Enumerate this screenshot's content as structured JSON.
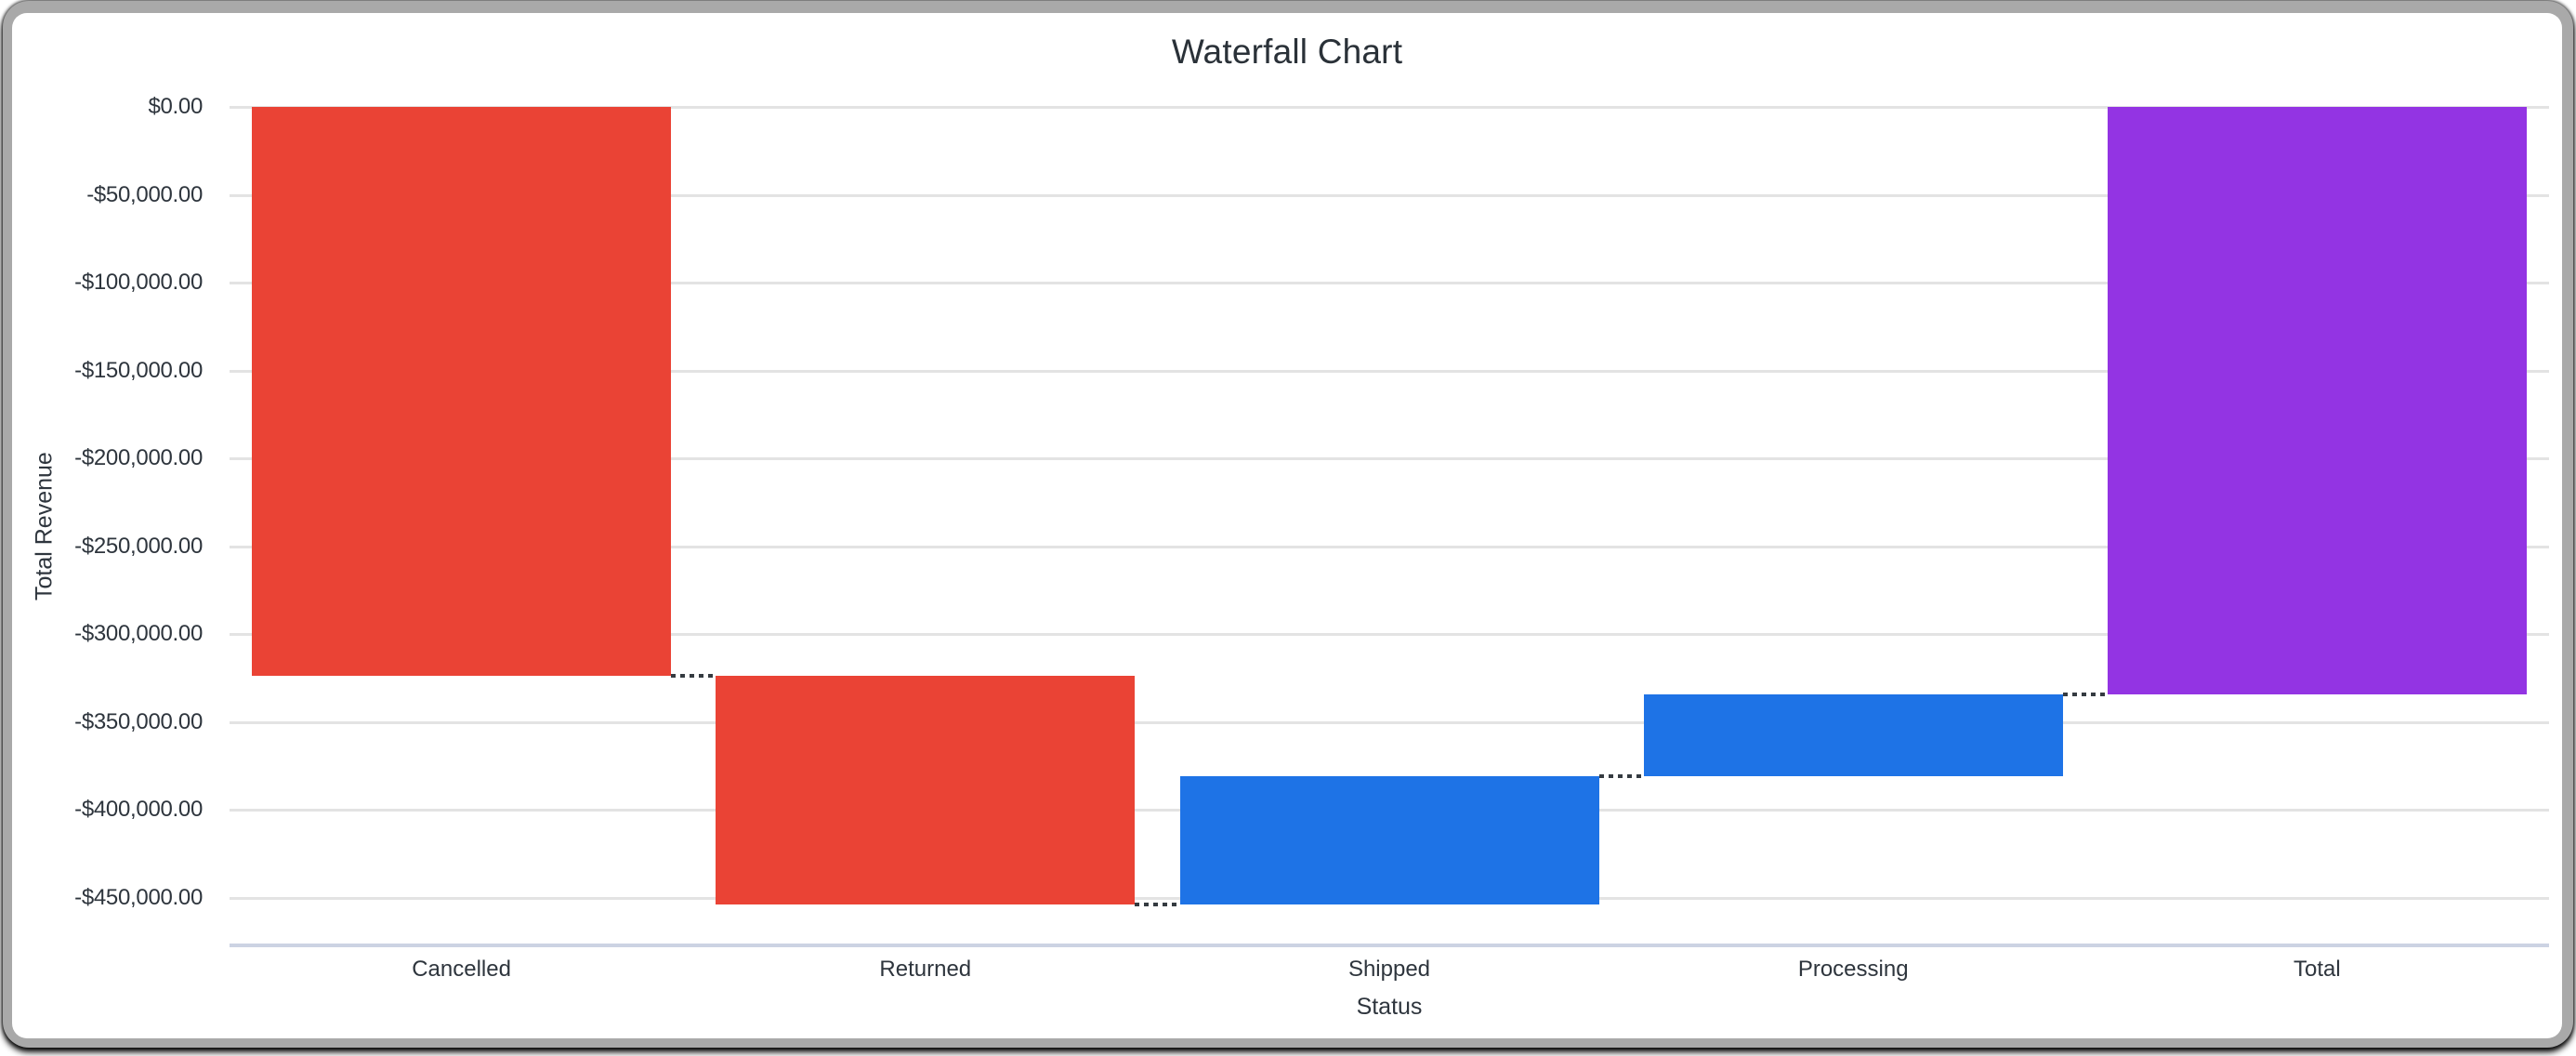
{
  "chart_data": {
    "type": "waterfall-bar",
    "title": "Waterfall Chart",
    "xlabel": "Status",
    "ylabel": "Total Revenue",
    "categories": [
      "Cancelled",
      "Returned",
      "Shipped",
      "Processing",
      "Total"
    ],
    "bars": [
      {
        "label": "Cancelled",
        "delta": -323500,
        "start": 0,
        "end": -323500,
        "direction": "fall",
        "color": "#EA4335"
      },
      {
        "label": "Returned",
        "delta": -130300,
        "start": -323500,
        "end": -453800,
        "direction": "fall",
        "color": "#EA4335"
      },
      {
        "label": "Shipped",
        "delta": 73100,
        "start": -453800,
        "end": -380700,
        "direction": "rise",
        "color": "#1E73E6"
      },
      {
        "label": "Processing",
        "delta": 46400,
        "start": -380700,
        "end": -334300,
        "direction": "rise",
        "color": "#1E73E6"
      },
      {
        "label": "Total",
        "delta": -334300,
        "start": 0,
        "end": -334300,
        "direction": "total",
        "color": "#9334E3"
      }
    ],
    "y_ticks": [
      {
        "value": 0,
        "label": "$0.00"
      },
      {
        "value": -50000,
        "label": "-$50,000.00"
      },
      {
        "value": -100000,
        "label": "-$100,000.00"
      },
      {
        "value": -150000,
        "label": "-$150,000.00"
      },
      {
        "value": -200000,
        "label": "-$200,000.00"
      },
      {
        "value": -250000,
        "label": "-$250,000.00"
      },
      {
        "value": -300000,
        "label": "-$300,000.00"
      },
      {
        "value": -350000,
        "label": "-$350,000.00"
      },
      {
        "value": -400000,
        "label": "-$400,000.00"
      },
      {
        "value": -450000,
        "label": "-$450,000.00"
      }
    ],
    "ylim": [
      0,
      -477000
    ],
    "grid": true,
    "legend": "none",
    "colors": {
      "fall": "#EA4335",
      "rise": "#1E73E6",
      "total": "#9334E3",
      "gridline": "#e3e3e3",
      "axis_baseline": "#ccd3e3",
      "connector": "#353b41",
      "text": "#2e353d",
      "title_text": "#2a3138",
      "frame": "#a9a9a9",
      "card_background": "#ffffff"
    }
  }
}
